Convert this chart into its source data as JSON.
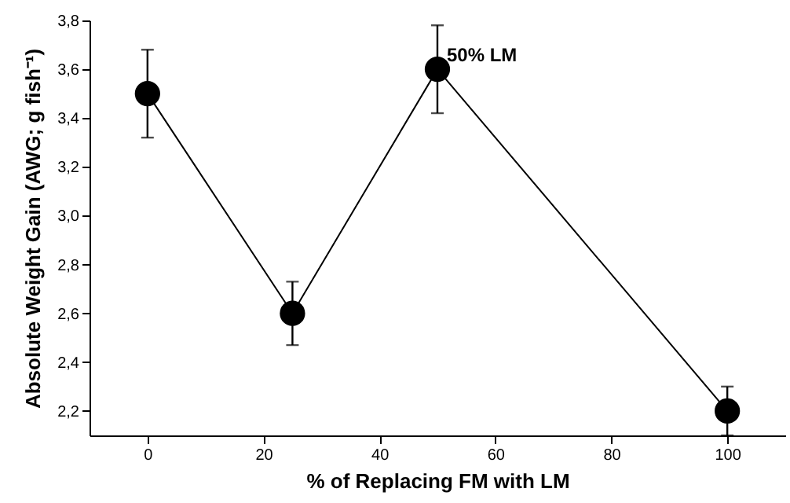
{
  "chart_data": {
    "type": "line",
    "xlabel": "% of Replacing FM with LM",
    "ylabel": "Absolute Weight Gain (AWG; g fish⁻¹)",
    "x": [
      0,
      25,
      50,
      100
    ],
    "series": [
      {
        "color": "#000000",
        "values": [
          3.5,
          2.6,
          3.6,
          2.2
        ],
        "errors": [
          0.18,
          0.13,
          0.18,
          0.1
        ]
      }
    ],
    "xlim": [
      -10,
      110
    ],
    "xticks": [
      0,
      20,
      40,
      60,
      80,
      100
    ],
    "ylim": [
      2.1,
      3.8
    ],
    "yticks": [
      {
        "value": 2.2,
        "label": "2,2"
      },
      {
        "value": 2.4,
        "label": "2,4"
      },
      {
        "value": 2.6,
        "label": "2,6"
      },
      {
        "value": 2.8,
        "label": "2,8"
      },
      {
        "value": 3.0,
        "label": "3,0"
      },
      {
        "value": 3.2,
        "label": "3,2"
      },
      {
        "value": 3.4,
        "label": "3,4"
      },
      {
        "value": 3.6,
        "label": "3,6"
      },
      {
        "value": 3.8,
        "label": "3,8"
      }
    ],
    "annotations": [
      {
        "text": "50% LM",
        "x": 50,
        "y": 3.6
      }
    ],
    "marker": "circle",
    "line_style": "solid"
  }
}
